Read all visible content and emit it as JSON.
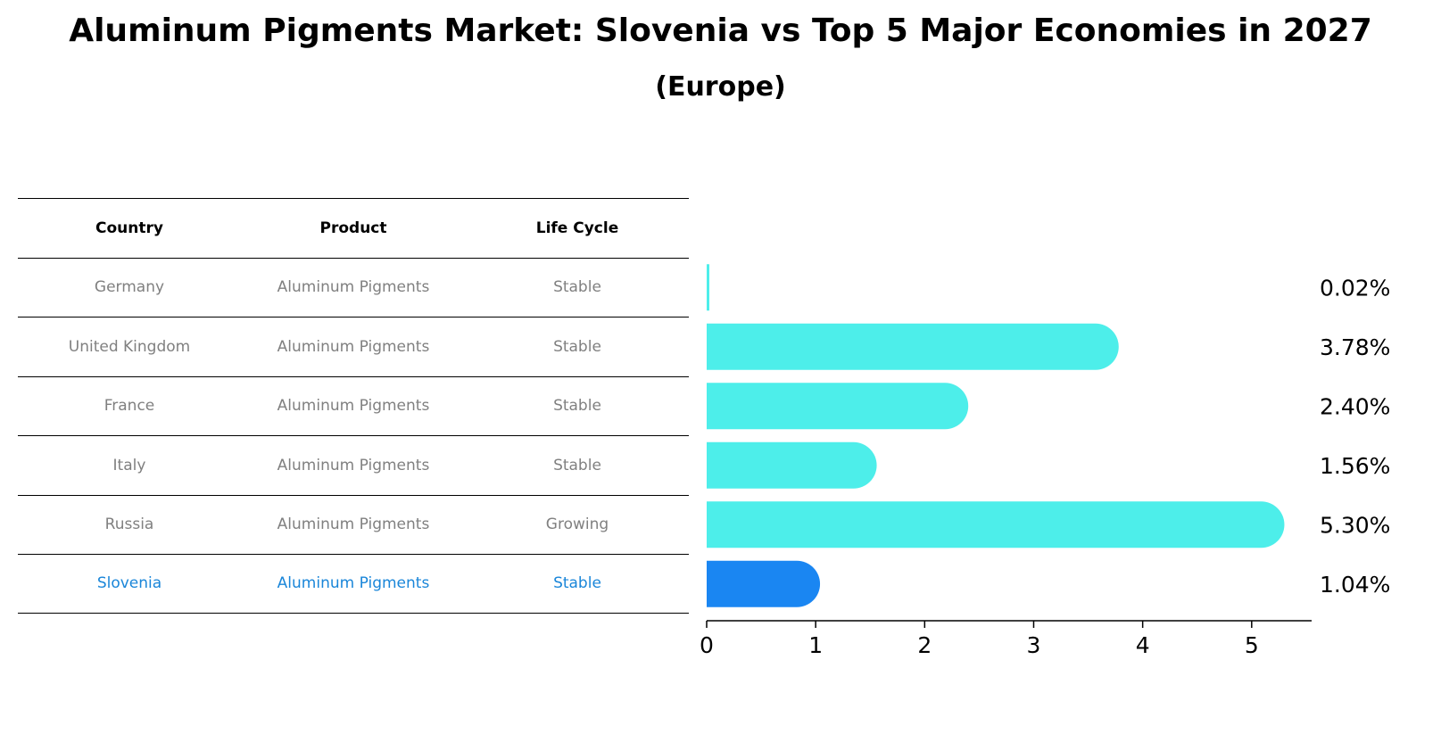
{
  "title": "Aluminum Pigments Market: Slovenia vs Top 5 Major Economies in 2027",
  "subtitle": "(Europe)",
  "table": {
    "headers": [
      "Country",
      "Product",
      "Life Cycle"
    ],
    "rows": [
      [
        "Germany",
        "Aluminum Pigments",
        "Stable"
      ],
      [
        "United Kingdom",
        "Aluminum Pigments",
        "Stable"
      ],
      [
        "France",
        "Aluminum Pigments",
        "Stable"
      ],
      [
        "Italy",
        "Aluminum Pigments",
        "Stable"
      ],
      [
        "Russia",
        "Aluminum Pigments",
        "Growing"
      ],
      [
        "Slovenia",
        "Aluminum Pigments",
        "Stable"
      ]
    ],
    "highlight_row": 5,
    "highlight_color": "#1a86d9"
  },
  "chart_data": {
    "type": "bar",
    "orientation": "horizontal",
    "categories": [
      "Germany",
      "United Kingdom",
      "France",
      "Italy",
      "Russia",
      "Slovenia"
    ],
    "values": [
      0.02,
      3.78,
      2.4,
      1.56,
      5.3,
      1.04
    ],
    "value_labels": [
      "0.02%",
      "3.78%",
      "2.40%",
      "1.56%",
      "5.30%",
      "1.04%"
    ],
    "colors": [
      "#4deeea",
      "#4deeea",
      "#4deeea",
      "#4deeea",
      "#4deeea",
      "#1a86f2"
    ],
    "xlim": [
      0,
      5.55
    ],
    "xticks": [
      0,
      1,
      2,
      3,
      4,
      5
    ],
    "xlabel": "",
    "ylabel": "",
    "grid": false
  }
}
